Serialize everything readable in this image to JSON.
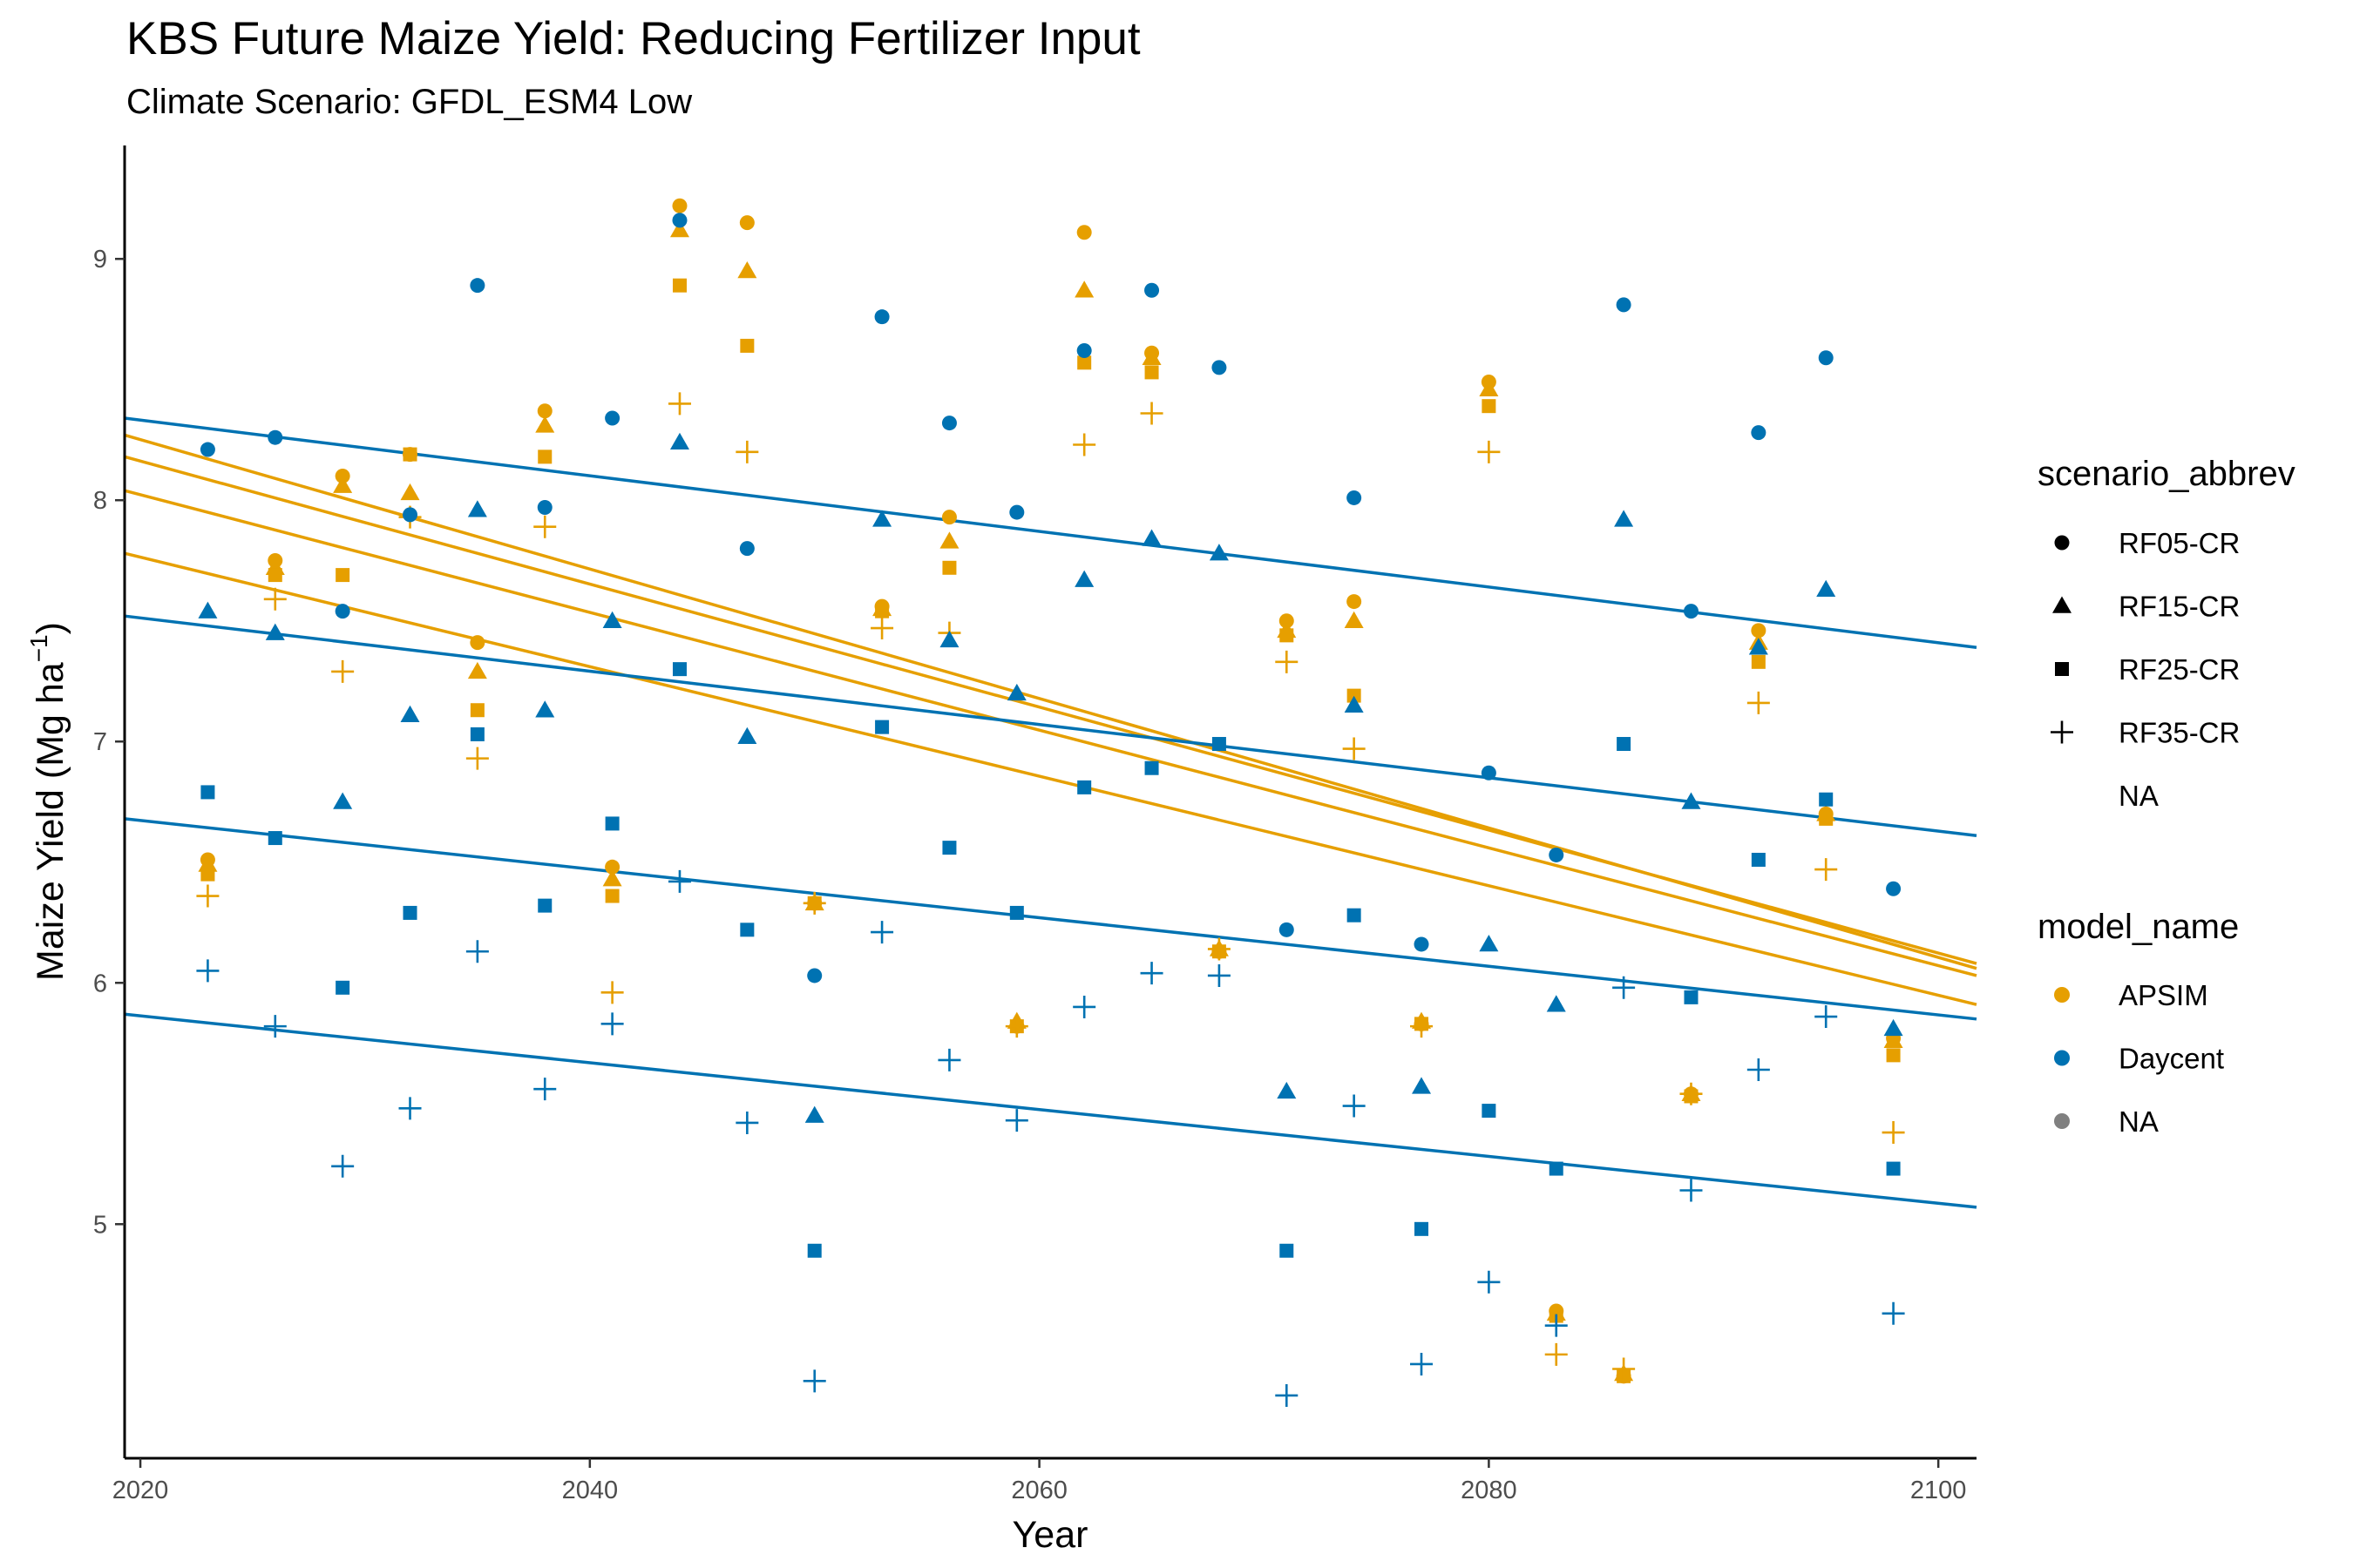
{
  "chart_data": {
    "type": "scatter",
    "title": "KBS Future Maize Yield: Reducing Fertilizer Input",
    "subtitle": "Climate Scenario: GFDL_ESM4 Low",
    "xlabel": "Year",
    "ylabel_main": "Maize Yield (Mg ha",
    "ylabel_sup": "−1",
    "ylabel_close": ")",
    "xlim": [
      2019.3,
      2101.7
    ],
    "ylim": [
      4.03,
      9.47
    ],
    "xticks": [
      2020,
      2040,
      2060,
      2080,
      2100
    ],
    "yticks": [
      5,
      6,
      7,
      8,
      9
    ],
    "grid": false,
    "legend_position": "right",
    "colors": {
      "APSIM": "#E69F00",
      "Daycent": "#0072B2",
      "NA": "#808080"
    },
    "legend_scenario": {
      "title": "scenario_abbrev",
      "items": [
        {
          "label": "RF05-CR",
          "shape": "circle"
        },
        {
          "label": "RF15-CR",
          "shape": "triangle"
        },
        {
          "label": "RF25-CR",
          "shape": "square"
        },
        {
          "label": "RF35-CR",
          "shape": "plus"
        },
        {
          "label": "NA",
          "shape": "none"
        }
      ]
    },
    "legend_model": {
      "title": "model_name",
      "items": [
        {
          "label": "APSIM",
          "color": "#E69F00"
        },
        {
          "label": "Daycent",
          "color": "#0072B2"
        },
        {
          "label": "NA",
          "color": "#808080"
        }
      ]
    },
    "trend_lines": [
      {
        "model": "APSIM",
        "scenario": "RF05-CR",
        "x": [
          2019.3,
          2101.7
        ],
        "y": [
          8.27,
          6.06
        ]
      },
      {
        "model": "APSIM",
        "scenario": "RF15-CR",
        "x": [
          2019.3,
          2101.7
        ],
        "y": [
          8.18,
          6.08
        ]
      },
      {
        "model": "APSIM",
        "scenario": "RF25-CR",
        "x": [
          2019.3,
          2101.7
        ],
        "y": [
          8.04,
          6.03
        ]
      },
      {
        "model": "APSIM",
        "scenario": "RF35-CR",
        "x": [
          2019.3,
          2101.7
        ],
        "y": [
          7.78,
          5.91
        ]
      },
      {
        "model": "Daycent",
        "scenario": "RF05-CR",
        "x": [
          2019.3,
          2101.7
        ],
        "y": [
          8.34,
          7.39
        ]
      },
      {
        "model": "Daycent",
        "scenario": "RF15-CR",
        "x": [
          2019.3,
          2101.7
        ],
        "y": [
          7.52,
          6.61
        ]
      },
      {
        "model": "Daycent",
        "scenario": "RF25-CR",
        "x": [
          2019.3,
          2101.7
        ],
        "y": [
          6.68,
          5.85
        ]
      },
      {
        "model": "Daycent",
        "scenario": "RF35-CR",
        "x": [
          2019.3,
          2101.7
        ],
        "y": [
          5.87,
          5.07
        ]
      }
    ],
    "series": [
      {
        "model": "APSIM",
        "scenario": "RF05-CR",
        "x": [
          2023,
          2026,
          2029,
          2032,
          2035,
          2038,
          2041,
          2044,
          2047,
          2050,
          2053,
          2056,
          2059,
          2062,
          2065,
          2068,
          2071,
          2074,
          2077,
          2080,
          2083,
          2086,
          2089,
          2092,
          2095,
          2098
        ],
        "y": [
          6.51,
          7.75,
          8.1,
          8.19,
          7.41,
          8.37,
          6.48,
          9.22,
          9.15,
          6.33,
          7.56,
          7.93,
          5.82,
          9.11,
          8.61,
          6.13,
          7.5,
          7.58,
          5.83,
          8.49,
          4.64,
          4.37,
          5.54,
          7.46,
          6.7,
          5.77
        ]
      },
      {
        "model": "APSIM",
        "scenario": "RF15-CR",
        "x": [
          2023,
          2026,
          2029,
          2032,
          2035,
          2038,
          2041,
          2044,
          2047,
          2050,
          2053,
          2056,
          2059,
          2062,
          2065,
          2068,
          2071,
          2074,
          2077,
          2080,
          2083,
          2086,
          2089,
          2092,
          2095,
          2098
        ],
        "y": [
          6.49,
          7.72,
          8.06,
          8.03,
          7.29,
          8.31,
          6.43,
          9.12,
          8.95,
          6.33,
          7.55,
          7.83,
          5.84,
          8.87,
          8.59,
          6.14,
          7.46,
          7.5,
          5.84,
          8.46,
          4.63,
          4.38,
          5.54,
          7.41,
          6.7,
          5.76
        ]
      },
      {
        "model": "APSIM",
        "scenario": "RF25-CR",
        "x": [
          2023,
          2026,
          2029,
          2032,
          2035,
          2038,
          2041,
          2044,
          2047,
          2050,
          2053,
          2056,
          2059,
          2062,
          2065,
          2068,
          2071,
          2074,
          2077,
          2080,
          2083,
          2086,
          2089,
          2092,
          2095,
          2098
        ],
        "y": [
          6.45,
          7.69,
          7.69,
          8.19,
          7.13,
          8.18,
          6.36,
          8.89,
          8.64,
          6.33,
          7.54,
          7.72,
          5.82,
          8.57,
          8.53,
          6.13,
          7.44,
          7.19,
          5.83,
          8.39,
          4.62,
          4.37,
          5.53,
          7.33,
          6.68,
          5.7
        ]
      },
      {
        "model": "APSIM",
        "scenario": "RF35-CR",
        "x": [
          2023,
          2026,
          2029,
          2032,
          2035,
          2038,
          2041,
          2044,
          2047,
          2050,
          2053,
          2056,
          2059,
          2062,
          2065,
          2068,
          2071,
          2074,
          2077,
          2080,
          2083,
          2086,
          2089,
          2092,
          2095,
          2098
        ],
        "y": [
          6.36,
          7.59,
          7.29,
          7.93,
          6.93,
          7.89,
          5.96,
          8.4,
          8.2,
          6.33,
          7.47,
          7.45,
          5.82,
          8.23,
          8.36,
          6.14,
          7.33,
          6.97,
          5.82,
          8.2,
          4.46,
          4.4,
          5.54,
          7.16,
          6.47,
          5.38
        ]
      },
      {
        "model": "Daycent",
        "scenario": "RF05-CR",
        "x": [
          2023,
          2026,
          2029,
          2032,
          2035,
          2038,
          2041,
          2044,
          2047,
          2050,
          2053,
          2056,
          2059,
          2062,
          2065,
          2068,
          2071,
          2074,
          2077,
          2080,
          2083,
          2086,
          2089,
          2092,
          2095,
          2098
        ],
        "y": [
          8.21,
          8.26,
          7.54,
          7.94,
          8.89,
          7.97,
          8.34,
          9.16,
          7.8,
          6.03,
          8.76,
          8.32,
          7.95,
          8.62,
          8.87,
          8.55,
          6.22,
          8.01,
          6.16,
          6.87,
          6.53,
          8.81,
          7.54,
          8.28,
          8.59,
          6.39
        ]
      },
      {
        "model": "Daycent",
        "scenario": "RF15-CR",
        "x": [
          2023,
          2026,
          2029,
          2032,
          2035,
          2038,
          2041,
          2044,
          2047,
          2050,
          2053,
          2056,
          2059,
          2062,
          2065,
          2068,
          2071,
          2074,
          2077,
          2080,
          2083,
          2086,
          2089,
          2092,
          2095,
          2098
        ],
        "y": [
          7.54,
          7.45,
          6.75,
          7.11,
          7.96,
          7.13,
          7.5,
          8.24,
          7.02,
          5.45,
          7.92,
          7.42,
          7.2,
          7.67,
          7.84,
          7.78,
          5.55,
          7.15,
          5.57,
          6.16,
          5.91,
          7.92,
          6.75,
          7.39,
          7.63,
          5.81
        ]
      },
      {
        "model": "Daycent",
        "scenario": "RF25-CR",
        "x": [
          2023,
          2026,
          2029,
          2032,
          2035,
          2038,
          2041,
          2044,
          2047,
          2050,
          2053,
          2056,
          2059,
          2062,
          2065,
          2068,
          2071,
          2074,
          2077,
          2080,
          2083,
          2086,
          2089,
          2092,
          2095,
          2098
        ],
        "y": [
          6.79,
          6.6,
          5.98,
          6.29,
          7.03,
          6.32,
          6.66,
          7.3,
          6.22,
          4.89,
          7.06,
          6.56,
          6.29,
          6.81,
          6.89,
          6.99,
          4.89,
          6.28,
          4.98,
          5.47,
          5.23,
          6.99,
          5.94,
          6.51,
          6.76,
          5.23
        ]
      },
      {
        "model": "Daycent",
        "scenario": "RF35-CR",
        "x": [
          2023,
          2026,
          2029,
          2032,
          2035,
          2038,
          2041,
          2044,
          2047,
          2050,
          2053,
          2056,
          2059,
          2062,
          2065,
          2068,
          2071,
          2074,
          2077,
          2080,
          2083,
          2086,
          2089,
          2092,
          2095,
          2098
        ],
        "y": [
          6.05,
          5.82,
          5.24,
          5.48,
          6.13,
          5.56,
          5.83,
          6.42,
          5.42,
          4.35,
          6.21,
          5.68,
          5.43,
          5.9,
          6.04,
          6.03,
          4.29,
          5.49,
          4.42,
          4.76,
          4.58,
          5.98,
          5.14,
          5.64,
          5.86,
          4.63
        ]
      }
    ]
  }
}
